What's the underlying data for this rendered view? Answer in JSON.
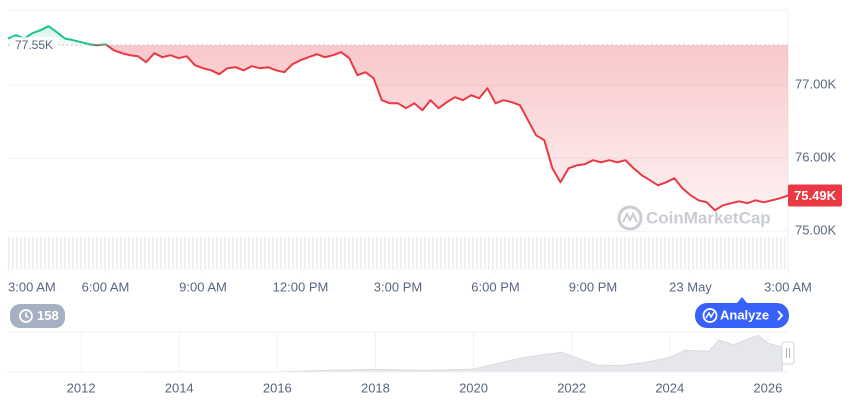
{
  "chart_data": [
    {
      "type": "line",
      "values": [
        77640,
        77685,
        77640,
        77712,
        77753,
        77808,
        77726,
        77640,
        77616,
        77589,
        77562,
        77548,
        77562,
        77479,
        77438,
        77411,
        77397,
        77315,
        77438,
        77384,
        77411,
        77370,
        77397,
        77274,
        77233,
        77205,
        77151,
        77233,
        77247,
        77205,
        77260,
        77233,
        77247,
        77205,
        77178,
        77288,
        77343,
        77384,
        77425,
        77384,
        77411,
        77452,
        77370,
        77137,
        77178,
        77096,
        76795,
        76753,
        76753,
        76685,
        76753,
        76658,
        76795,
        76685,
        76767,
        76836,
        76795,
        76863,
        76822,
        76959,
        76753,
        76795,
        76767,
        76726,
        76521,
        76315,
        76247,
        75863,
        75671,
        75863,
        75904,
        75918,
        75973,
        75945,
        75973,
        75945,
        75973,
        75863,
        75767,
        75699,
        75630,
        75671,
        75726,
        75589,
        75493,
        75425,
        75397,
        75288,
        75356,
        75384,
        75411,
        75384,
        75425,
        75397,
        75425,
        75452,
        75490
      ],
      "xlim": [
        0,
        96
      ],
      "xticks": [
        {
          "value": 0,
          "label": "3:00 AM"
        },
        {
          "value": 12,
          "label": "6:00 AM"
        },
        {
          "value": 24,
          "label": "9:00 AM"
        },
        {
          "value": 36,
          "label": "12:00 PM"
        },
        {
          "value": 48,
          "label": "3:00 PM"
        },
        {
          "value": 60,
          "label": "6:00 PM"
        },
        {
          "value": 72,
          "label": "9:00 PM"
        },
        {
          "value": 84,
          "label": "23 May"
        },
        {
          "value": 96,
          "label": "3:00 AM"
        }
      ],
      "ylim": [
        74470,
        78030
      ],
      "yticks": [
        {
          "value": 75000,
          "label": "75.00K"
        },
        {
          "value": 76000,
          "label": "76.00K"
        },
        {
          "value": 77000,
          "label": "77.00K"
        }
      ],
      "reference_line": {
        "value": 77550,
        "label": "77.55K"
      },
      "price_tag": {
        "value": 75490,
        "label": "75.49K"
      },
      "up_color": "#16c784",
      "down_color": "#ea3943",
      "grid": true,
      "watermark": "CoinMarketCap",
      "badge": 158,
      "button": "Analyze"
    },
    {
      "type": "area",
      "x": [
        2010.5,
        2013,
        2014,
        2016,
        2017,
        2018,
        2019,
        2020,
        2021,
        2021.8,
        2022.5,
        2023,
        2023.5,
        2024,
        2024.3,
        2024.8,
        2025,
        2025.3,
        2025.8,
        2026,
        2026.3
      ],
      "values": [
        0,
        100,
        500,
        400,
        5000,
        8000,
        5000,
        9000,
        45000,
        62000,
        22000,
        20000,
        30000,
        45000,
        68000,
        65000,
        100000,
        85000,
        115000,
        90000,
        77000
      ],
      "xlim": [
        2010.51,
        2026.41
      ],
      "xticks": [
        2012,
        2014,
        2016,
        2018,
        2020,
        2022,
        2024,
        2026
      ],
      "ylim": [
        0,
        125000
      ],
      "color": "#e6e7ea"
    }
  ]
}
